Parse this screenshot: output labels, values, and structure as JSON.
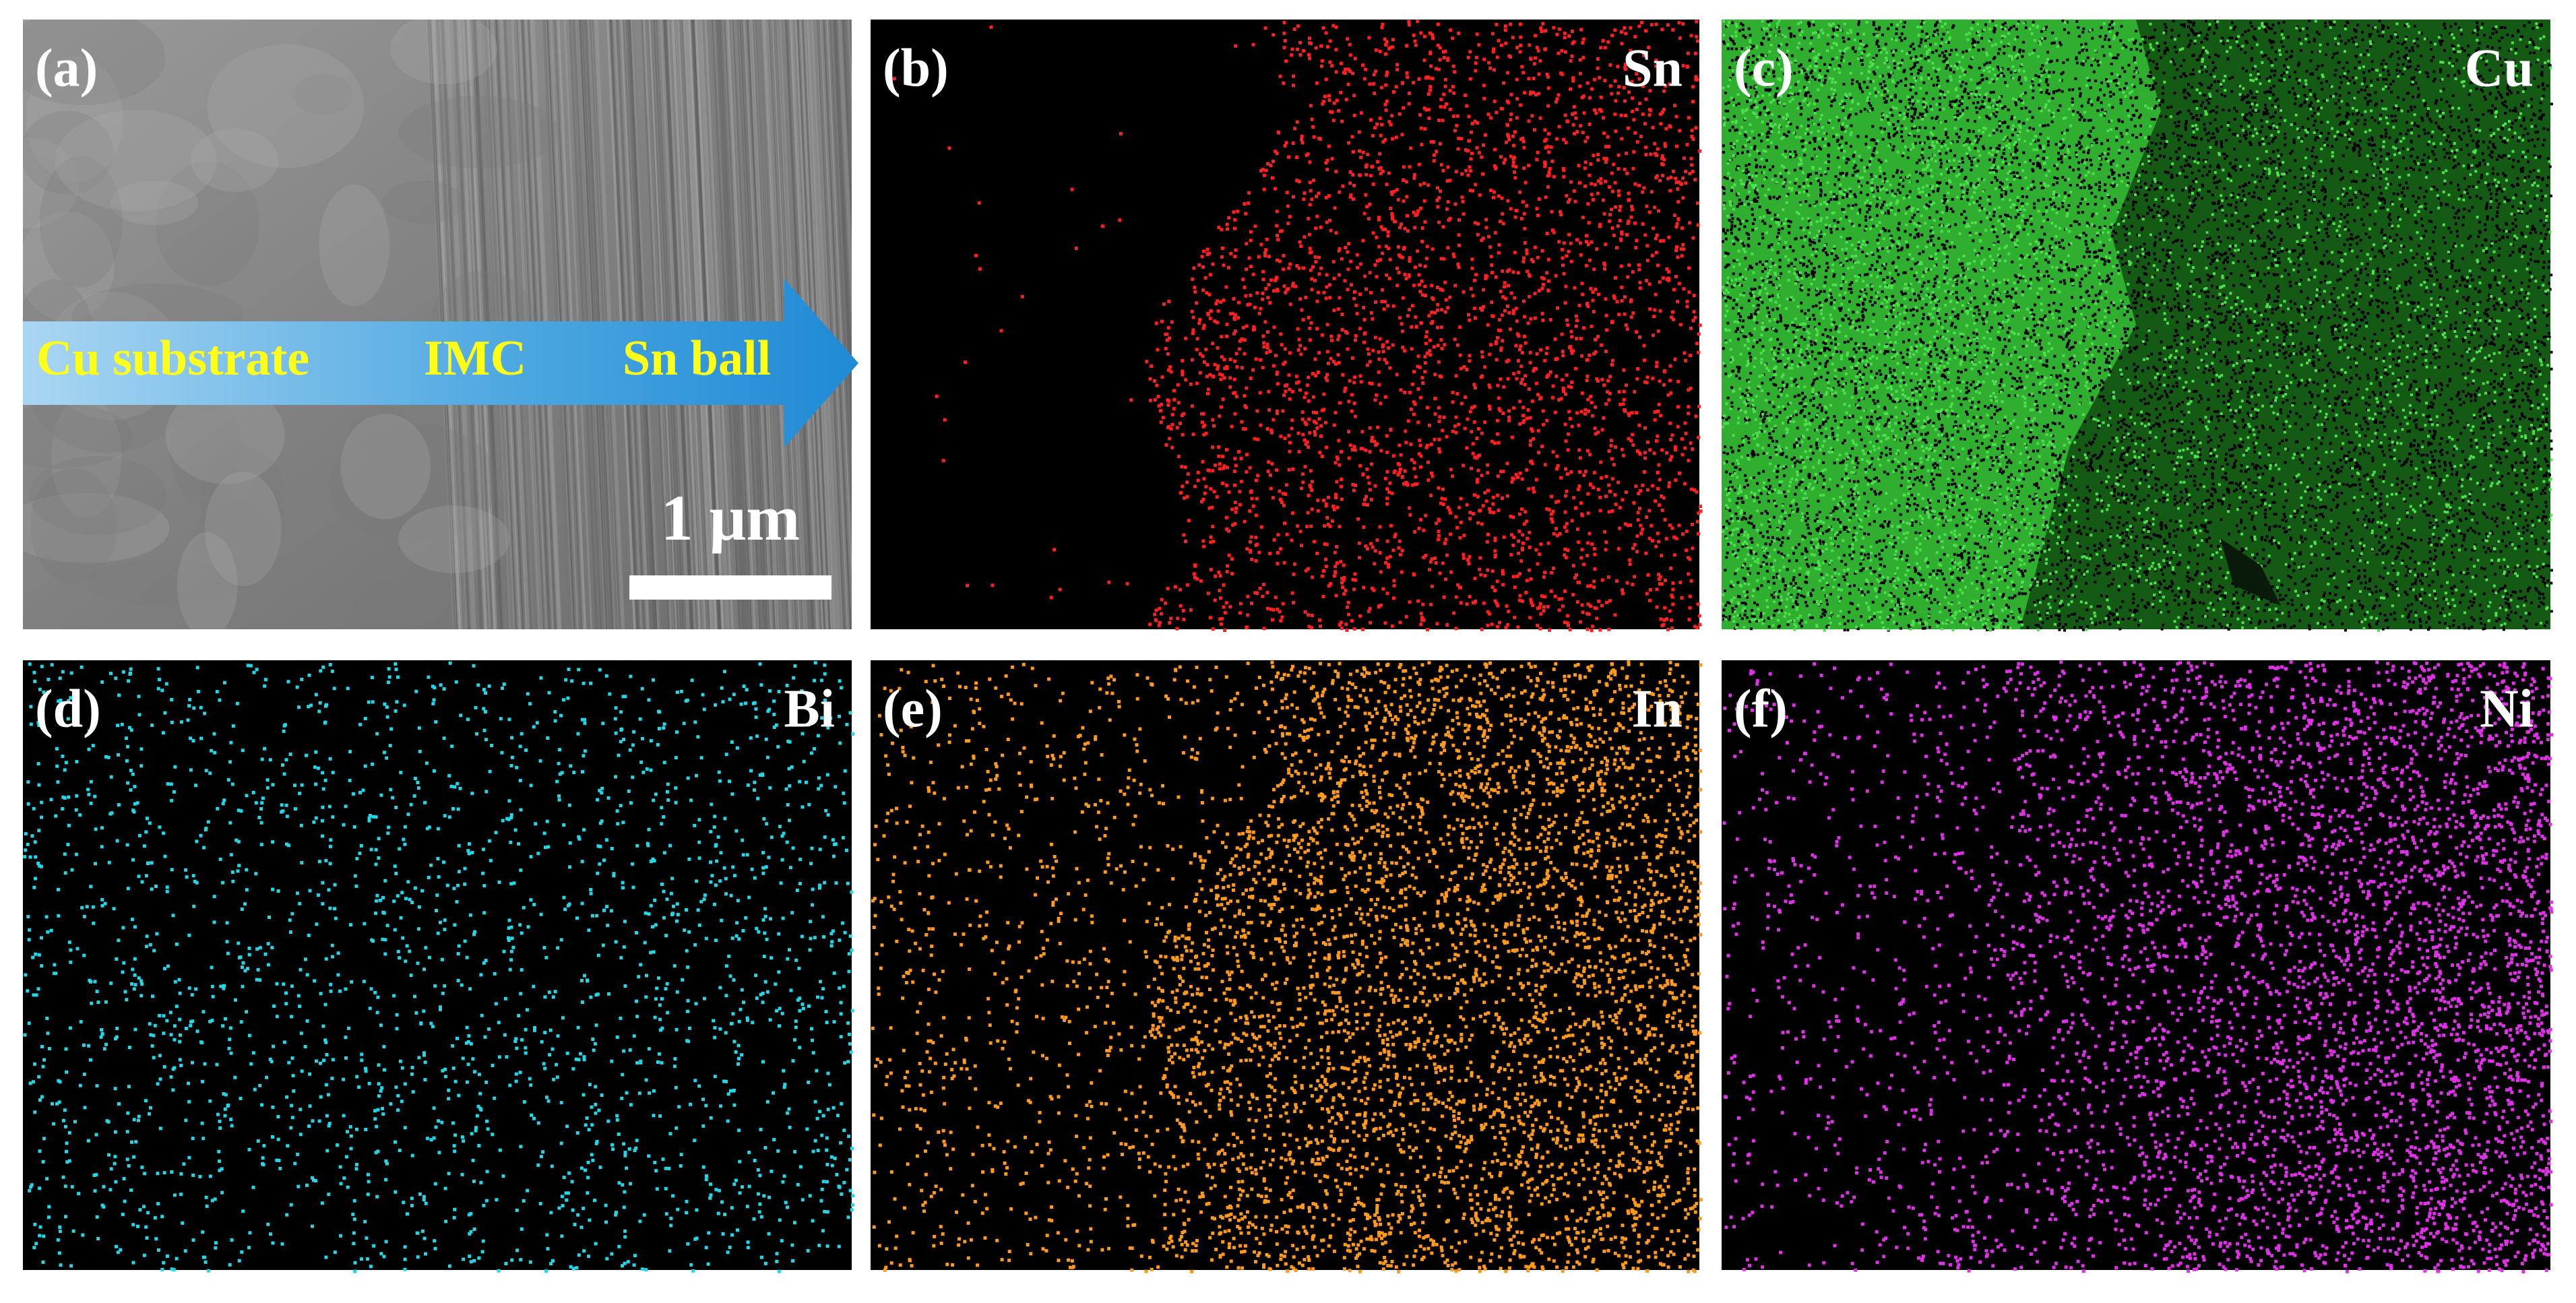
{
  "panels": [
    {
      "label": "(a)"
    },
    {
      "label": "(b)",
      "element": "Sn"
    },
    {
      "label": "(c)",
      "element": "Cu"
    },
    {
      "label": "(d)",
      "element": "Bi"
    },
    {
      "label": "(e)",
      "element": "In"
    },
    {
      "label": "(f)",
      "element": "Ni"
    }
  ],
  "arrow_labels": [
    "Cu substrate",
    "IMC",
    "Sn ball"
  ],
  "scale_bar": "1 μm"
}
